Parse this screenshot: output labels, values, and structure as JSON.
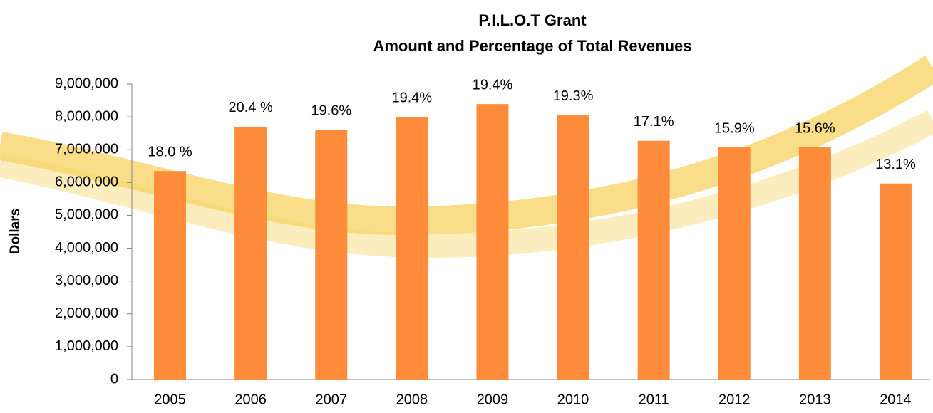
{
  "chart_data": {
    "type": "bar",
    "title": "P.I.L.O.T Grant",
    "subtitle": "Amount and Percentage of Total Revenues",
    "y_label": "Dollars",
    "categories": [
      "2005",
      "2006",
      "2007",
      "2008",
      "2009",
      "2010",
      "2011",
      "2012",
      "2013",
      "2014"
    ],
    "values": [
      6350000,
      7700000,
      7610000,
      8000000,
      8390000,
      8050000,
      7270000,
      7070000,
      7070000,
      5970000
    ],
    "percent_labels": [
      "18.0 %",
      "20.4 %",
      "19.6%",
      "19.4%",
      "19.4%",
      "19.3%",
      "17.1%",
      "15.9%",
      "15.6%",
      "13.1%"
    ],
    "color": "#ff8c3a",
    "ylim": [
      0,
      9000000
    ],
    "yticks": [
      0,
      {
        "value": 1000000,
        "label": "1,000,000"
      },
      {
        "value": 2000000,
        "label": "2,000,000"
      },
      {
        "value": 3000000,
        "label": "3,000,000"
      },
      {
        "value": 4000000,
        "label": "4,000,000"
      },
      {
        "value": 5000000,
        "label": "5,000,000"
      },
      {
        "value": 6000000,
        "label": "6,000,000"
      },
      {
        "value": 7000000,
        "label": "7,000,000"
      },
      {
        "value": 8000000,
        "label": "8,000,000"
      },
      {
        "value": 9000000,
        "label": "9,000,000"
      }
    ],
    "grid": false
  }
}
